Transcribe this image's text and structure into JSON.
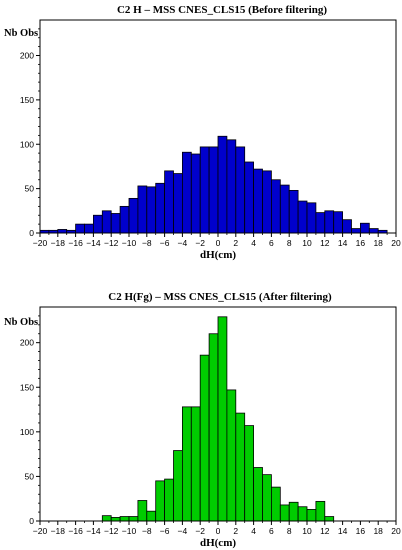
{
  "chart_data": [
    {
      "type": "bar",
      "title": "C2  H – MSS CNES_CLS15  (Before filtering)",
      "ylabel": "Nb Obs",
      "xlabel": "dH(cm)",
      "xlim": [
        -20,
        20
      ],
      "ylim": [
        0,
        240
      ],
      "bin_width": 1,
      "bar_color": "#0000cc",
      "x_ticks": [
        -20,
        -18,
        -16,
        -14,
        -12,
        -10,
        -8,
        -6,
        -4,
        -2,
        0,
        2,
        4,
        6,
        8,
        10,
        12,
        14,
        16,
        18,
        20
      ],
      "y_ticks": [
        0,
        50,
        100,
        150,
        200
      ],
      "bins": [
        {
          "x": -20,
          "y": 3
        },
        {
          "x": -19,
          "y": 3
        },
        {
          "x": -18,
          "y": 4
        },
        {
          "x": -17,
          "y": 3
        },
        {
          "x": -16,
          "y": 10
        },
        {
          "x": -15,
          "y": 10
        },
        {
          "x": -14,
          "y": 20
        },
        {
          "x": -13,
          "y": 25
        },
        {
          "x": -12,
          "y": 22
        },
        {
          "x": -11,
          "y": 30
        },
        {
          "x": -10,
          "y": 39
        },
        {
          "x": -9,
          "y": 53
        },
        {
          "x": -8,
          "y": 52
        },
        {
          "x": -7,
          "y": 56
        },
        {
          "x": -6,
          "y": 70
        },
        {
          "x": -5,
          "y": 67
        },
        {
          "x": -4,
          "y": 91
        },
        {
          "x": -3,
          "y": 89
        },
        {
          "x": -2,
          "y": 97
        },
        {
          "x": -1,
          "y": 97
        },
        {
          "x": 0,
          "y": 109
        },
        {
          "x": 1,
          "y": 105
        },
        {
          "x": 2,
          "y": 97
        },
        {
          "x": 3,
          "y": 80
        },
        {
          "x": 4,
          "y": 72
        },
        {
          "x": 5,
          "y": 70
        },
        {
          "x": 6,
          "y": 60
        },
        {
          "x": 7,
          "y": 54
        },
        {
          "x": 8,
          "y": 48
        },
        {
          "x": 9,
          "y": 36
        },
        {
          "x": 10,
          "y": 34
        },
        {
          "x": 11,
          "y": 23
        },
        {
          "x": 12,
          "y": 25
        },
        {
          "x": 13,
          "y": 24
        },
        {
          "x": 14,
          "y": 15
        },
        {
          "x": 15,
          "y": 5
        },
        {
          "x": 16,
          "y": 11
        },
        {
          "x": 17,
          "y": 5
        },
        {
          "x": 18,
          "y": 3
        }
      ]
    },
    {
      "type": "bar",
      "title": "C2 H(Fg) – MSS CNES_CLS15  (After filtering)",
      "ylabel": "Nb Obs",
      "xlabel": "dH(cm)",
      "xlim": [
        -20,
        20
      ],
      "ylim": [
        0,
        240
      ],
      "bin_width": 1,
      "bar_color": "#00cc00",
      "x_ticks": [
        -20,
        -18,
        -16,
        -14,
        -12,
        -10,
        -8,
        -6,
        -4,
        -2,
        0,
        2,
        4,
        6,
        8,
        10,
        12,
        14,
        16,
        18,
        20
      ],
      "y_ticks": [
        0,
        50,
        100,
        150,
        200
      ],
      "bins": [
        {
          "x": -13,
          "y": 6
        },
        {
          "x": -12,
          "y": 4
        },
        {
          "x": -11,
          "y": 5
        },
        {
          "x": -10,
          "y": 5
        },
        {
          "x": -9,
          "y": 23
        },
        {
          "x": -8,
          "y": 11
        },
        {
          "x": -7,
          "y": 45
        },
        {
          "x": -6,
          "y": 47
        },
        {
          "x": -5,
          "y": 79
        },
        {
          "x": -4,
          "y": 128
        },
        {
          "x": -3,
          "y": 128
        },
        {
          "x": -2,
          "y": 186
        },
        {
          "x": -1,
          "y": 210
        },
        {
          "x": 0,
          "y": 229
        },
        {
          "x": 1,
          "y": 147
        },
        {
          "x": 2,
          "y": 121
        },
        {
          "x": 3,
          "y": 107
        },
        {
          "x": 4,
          "y": 60
        },
        {
          "x": 5,
          "y": 52
        },
        {
          "x": 6,
          "y": 38
        },
        {
          "x": 7,
          "y": 18
        },
        {
          "x": 8,
          "y": 21
        },
        {
          "x": 9,
          "y": 16
        },
        {
          "x": 10,
          "y": 13
        },
        {
          "x": 11,
          "y": 22
        },
        {
          "x": 12,
          "y": 5
        }
      ]
    }
  ]
}
